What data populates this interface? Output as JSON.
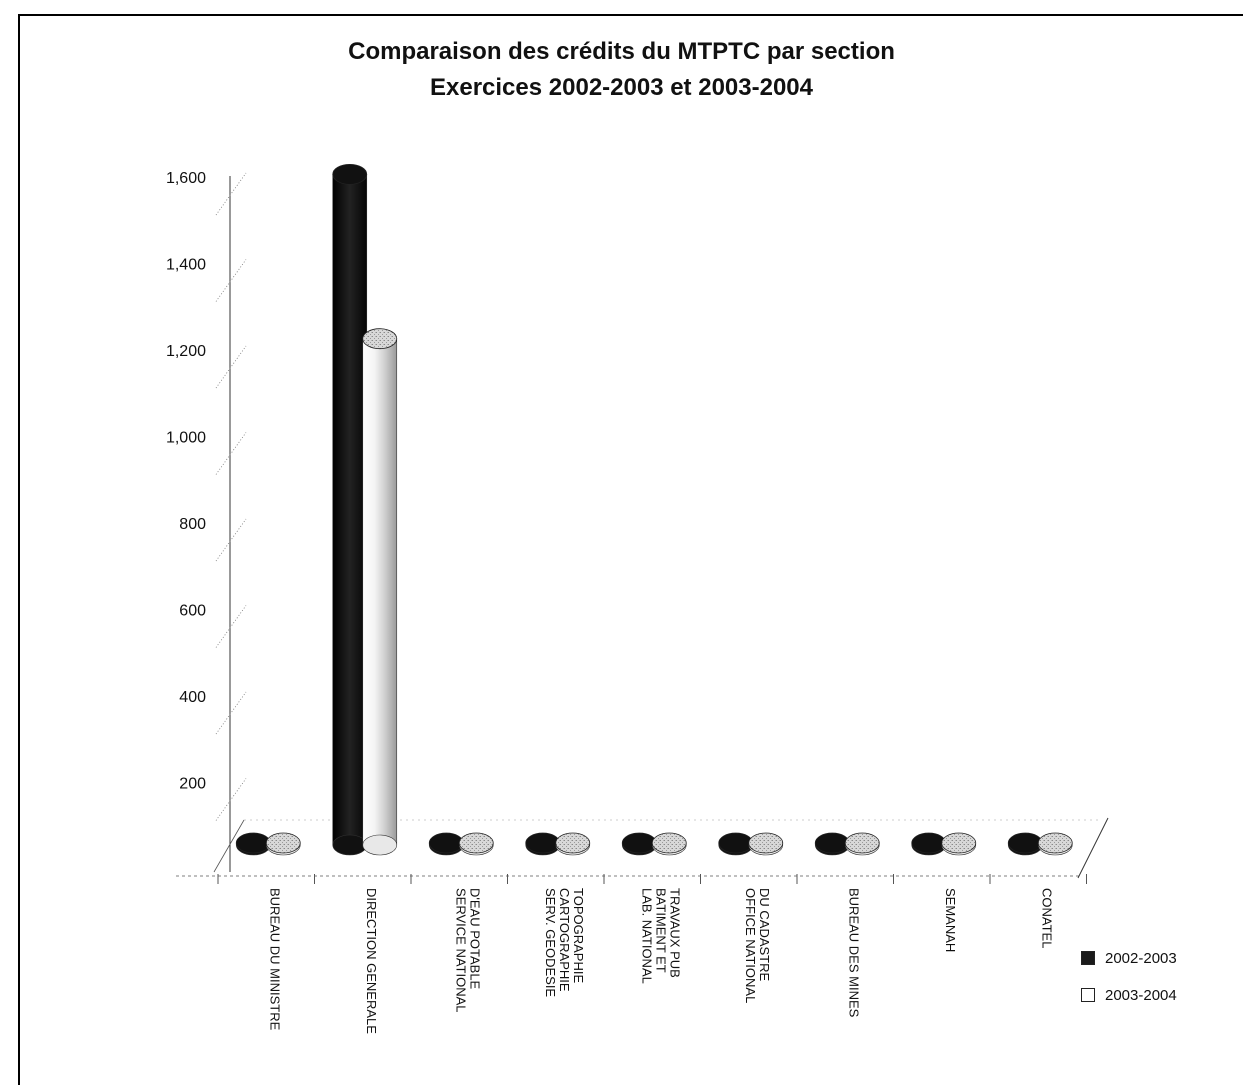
{
  "chart_data": {
    "type": "bar",
    "title": "Comparaison des crédits du MTPTC par section",
    "subtitle": "Exercices 2002-2003 et 2003-2004",
    "categories": [
      "BUREAU DU MINISTRE",
      "DIRECTION GENERALE",
      "SERVICE NATIONAL D'EAU POTABLE",
      "SERV. GEODESIE CARTOGRAPHIE TOPOGRAPHIE",
      "LAB. NATIONAL BATIMENT ET TRAVAUX PUB",
      "OFFICE NATIONAL DU CADASTRE",
      "BUREAU DES MINES",
      "SEMANAH",
      "CONATEL"
    ],
    "category_lines": [
      [
        "BUREAU DU MINISTRE"
      ],
      [
        "DIRECTION GENERALE"
      ],
      [
        "SERVICE NATIONAL",
        "D'EAU POTABLE"
      ],
      [
        "SERV. GEODESIE",
        "CARTOGRAPHIE",
        "TOPOGRAPHIE"
      ],
      [
        "LAB. NATIONAL",
        "BATIMENT ET",
        "TRAVAUX PUB"
      ],
      [
        "OFFICE NATIONAL",
        "DU CADASTRE"
      ],
      [
        "BUREAU DES MINES"
      ],
      [
        "SEMANAH"
      ],
      [
        "CONATEL"
      ]
    ],
    "series": [
      {
        "name": "2002-2003",
        "values": [
          5,
          1620,
          4,
          4,
          3,
          5,
          6,
          3,
          4
        ],
        "color": "#1a1a1a"
      },
      {
        "name": "2003-2004",
        "values": [
          6,
          1240,
          5,
          6,
          5,
          7,
          12,
          6,
          4
        ],
        "color": "#ffffff"
      }
    ],
    "ylim": [
      0,
      1600
    ],
    "yticks": [
      200,
      400,
      600,
      800,
      1000,
      1200,
      1400,
      1600
    ],
    "ytick_labels": [
      "200",
      "400",
      "600",
      "800",
      "1,000",
      "1,200",
      "1,400",
      "1,600"
    ],
    "xlabel": "",
    "ylabel": "",
    "legend_position": "bottom-right",
    "grid": false
  }
}
